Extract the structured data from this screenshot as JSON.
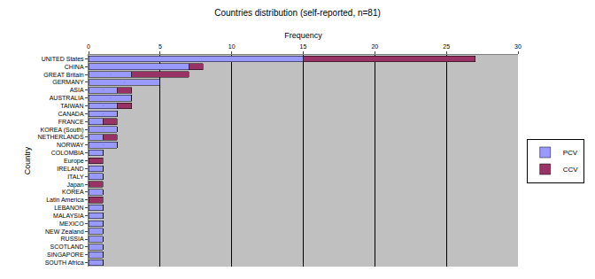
{
  "chart_data": {
    "type": "bar",
    "title": "Countries distribution (self-reported, n=81)",
    "x_label": "Frequency",
    "y_label": "Country",
    "orientation": "horizontal",
    "stacked": true,
    "grid": true,
    "legend": "right",
    "data_labels": true,
    "categories": [
      "UNITED States",
      "CHINA",
      "GREAT Britain",
      "GERMANY",
      "ASIA",
      "AUSTRALIA",
      "TAIWAN",
      "CANADA",
      "FRANCE",
      "KOREA (South)",
      "NETHERLANDS",
      "NORWAY",
      "COLOMBIA",
      "Europe",
      "IRELAND",
      "ITALY",
      "Japan",
      "KOREA",
      "Latin America",
      "LEBANON",
      "MALAYSIA",
      "MEXICO",
      "NEW Zealand",
      "RUSSIA",
      "SCOTLAND",
      "SINGAPORE",
      "SOUTH Africa"
    ],
    "series": [
      {
        "name": "PCV",
        "color": "#9999ff",
        "values": [
          15,
          7,
          3,
          5,
          2,
          3,
          2,
          2,
          1,
          2,
          1,
          2,
          1,
          0,
          1,
          1,
          0,
          1,
          0,
          1,
          1,
          1,
          1,
          1,
          1,
          1,
          1
        ]
      },
      {
        "name": "CCV",
        "color": "#993366",
        "values": [
          12,
          1,
          4,
          0,
          1,
          0,
          1,
          0,
          1,
          0,
          1,
          0,
          0,
          1,
          0,
          0,
          1,
          0,
          1,
          0,
          0,
          0,
          0,
          0,
          0,
          0,
          0
        ]
      }
    ],
    "xlim": [
      0,
      30
    ],
    "xticks": [
      0,
      5,
      10,
      15,
      20,
      25,
      30
    ]
  }
}
